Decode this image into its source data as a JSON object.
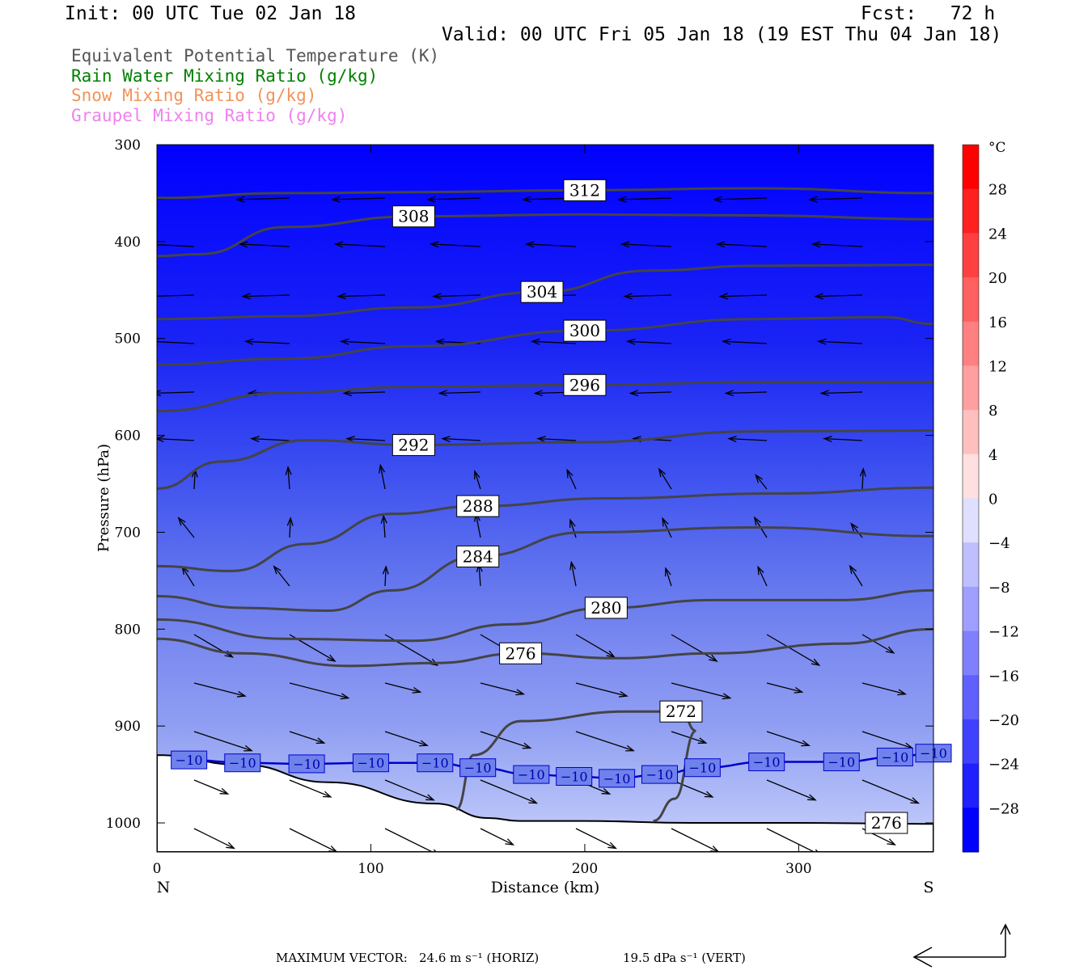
{
  "header": {
    "init": "Init: 00 UTC Tue 02 Jan 18",
    "fcst": "Fcst:   72 h",
    "valid": "Valid: 00 UTC Fri 05 Jan 18 (19 EST Thu 04 Jan 18)"
  },
  "legend": [
    {
      "label": "Equivalent Potential Temperature (K)",
      "color": "#555555"
    },
    {
      "label": "Rain Water Mixing Ratio (g/kg)",
      "color": "#008000"
    },
    {
      "label": "Snow Mixing Ratio (g/kg)",
      "color": "#f0935a"
    },
    {
      "label": "Graupel Mixing Ratio (g/kg)",
      "color": "#ee82ee"
    }
  ],
  "footer": {
    "prefix": "MAXIMUM VECTOR:",
    "horiz": "24.6 m s⁻¹ (HORIZ)",
    "vert": "19.5 dPa s⁻¹ (VERT)"
  },
  "chart_data": {
    "type": "cross-section",
    "xlabel": "Distance (km)",
    "ylabel": "Pressure (hPa)",
    "xlim": [
      0,
      363
    ],
    "ylim": [
      1030,
      300
    ],
    "x_ticks": [
      0,
      100,
      200,
      300
    ],
    "y_ticks": [
      300,
      400,
      500,
      600,
      700,
      800,
      900,
      1000
    ],
    "x_end_labels": {
      "left": "N",
      "right": "S"
    },
    "colorbar": {
      "unit": "°C",
      "range": [
        -32,
        32
      ],
      "ticks": [
        28,
        24,
        20,
        16,
        12,
        8,
        4,
        0,
        -4,
        -8,
        -12,
        -16,
        -20,
        -24,
        -28
      ],
      "tick_labels": [
        "28",
        "24",
        "20",
        "16",
        "12",
        "8",
        "4",
        "0",
        "−4",
        "−8",
        "−12",
        "−16",
        "−20",
        "−24",
        "−28"
      ]
    },
    "temperature_contour": {
      "label": "−10",
      "color": "#0000cc",
      "points": [
        [
          15,
          935
        ],
        [
          40,
          938
        ],
        [
          70,
          939
        ],
        [
          100,
          938
        ],
        [
          130,
          938
        ],
        [
          150,
          943
        ],
        [
          175,
          950
        ],
        [
          195,
          952
        ],
        [
          215,
          954
        ],
        [
          235,
          950
        ],
        [
          255,
          943
        ],
        [
          285,
          937
        ],
        [
          320,
          937
        ],
        [
          345,
          932
        ],
        [
          363,
          928
        ]
      ]
    },
    "theta_e_contours": [
      {
        "value": 312,
        "points": [
          [
            0,
            355
          ],
          [
            60,
            350
          ],
          [
            120,
            349
          ],
          [
            200,
            347
          ],
          [
            280,
            345
          ],
          [
            363,
            350
          ]
        ]
      },
      {
        "value": 308,
        "points": [
          [
            0,
            415
          ],
          [
            20,
            413
          ],
          [
            60,
            385
          ],
          [
            120,
            374
          ],
          [
            200,
            372
          ],
          [
            280,
            373
          ],
          [
            363,
            377
          ]
        ]
      },
      {
        "value": 304,
        "points": [
          [
            0,
            480
          ],
          [
            60,
            477
          ],
          [
            120,
            468
          ],
          [
            180,
            452
          ],
          [
            230,
            430
          ],
          [
            280,
            425
          ],
          [
            363,
            424
          ]
        ]
      },
      {
        "value": 300,
        "points": [
          [
            0,
            527
          ],
          [
            60,
            521
          ],
          [
            120,
            508
          ],
          [
            200,
            492
          ],
          [
            280,
            480
          ],
          [
            340,
            478
          ],
          [
            363,
            485
          ]
        ]
      },
      {
        "value": 296,
        "points": [
          [
            0,
            575
          ],
          [
            60,
            556
          ],
          [
            120,
            550
          ],
          [
            200,
            548
          ],
          [
            280,
            545
          ],
          [
            363,
            545
          ]
        ]
      },
      {
        "value": 292,
        "points": [
          [
            0,
            655
          ],
          [
            30,
            627
          ],
          [
            70,
            605
          ],
          [
            120,
            610
          ],
          [
            200,
            607
          ],
          [
            280,
            596
          ],
          [
            363,
            595
          ]
        ]
      },
      {
        "value": 288,
        "points": [
          [
            0,
            735
          ],
          [
            35,
            740
          ],
          [
            70,
            712
          ],
          [
            110,
            681
          ],
          [
            150,
            673
          ],
          [
            210,
            665
          ],
          [
            290,
            660
          ],
          [
            363,
            654
          ]
        ]
      },
      {
        "value": 284,
        "points": [
          [
            0,
            766
          ],
          [
            40,
            778
          ],
          [
            80,
            781
          ],
          [
            110,
            760
          ],
          [
            150,
            725
          ],
          [
            200,
            700
          ],
          [
            280,
            695
          ],
          [
            363,
            704
          ]
        ]
      },
      {
        "value": 280,
        "points": [
          [
            0,
            790
          ],
          [
            60,
            810
          ],
          [
            120,
            812
          ],
          [
            165,
            795
          ],
          [
            210,
            778
          ],
          [
            260,
            770
          ],
          [
            320,
            770
          ],
          [
            363,
            760
          ]
        ]
      },
      {
        "value": 276,
        "points": [
          [
            0,
            810
          ],
          [
            40,
            825
          ],
          [
            90,
            838
          ],
          [
            130,
            835
          ],
          [
            170,
            825
          ],
          [
            215,
            830
          ],
          [
            260,
            825
          ],
          [
            320,
            815
          ],
          [
            363,
            800
          ]
        ]
      },
      {
        "value": 272,
        "points": [
          [
            140,
            986
          ],
          [
            148,
            930
          ],
          [
            170,
            895
          ],
          [
            220,
            885
          ],
          [
            245,
            885
          ],
          [
            252,
            905
          ],
          [
            242,
            975
          ],
          [
            232,
            998
          ]
        ]
      }
    ],
    "theta_e_bottom_label": {
      "value": 276,
      "x": 341,
      "p": 1000
    },
    "terrain_surface": [
      [
        0,
        930
      ],
      [
        40,
        940
      ],
      [
        80,
        958
      ],
      [
        130,
        980
      ],
      [
        155,
        995
      ],
      [
        170,
        998
      ],
      [
        200,
        998
      ],
      [
        250,
        1000
      ],
      [
        300,
        1000
      ],
      [
        363,
        1001
      ]
    ]
  }
}
